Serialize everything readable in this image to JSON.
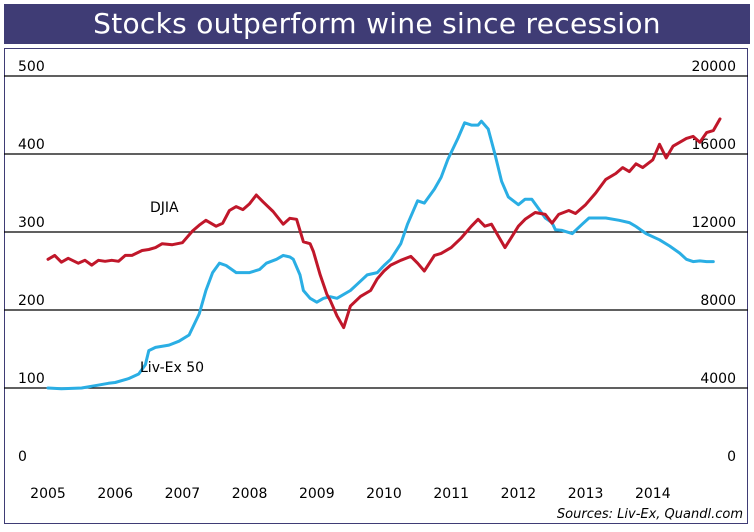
{
  "title": "Stocks outperform wine since recession",
  "source": "Sources: Liv-Ex, Quandl.com",
  "chart_data": {
    "type": "line",
    "title": "Stocks outperform wine since recession",
    "x_ticks": [
      "2005",
      "2006",
      "2007",
      "2008",
      "2009",
      "2010",
      "2011",
      "2012",
      "2013",
      "2014"
    ],
    "xlim": [
      2005,
      2015
    ],
    "left_axis": {
      "ticks": [
        "0",
        "100",
        "200",
        "300",
        "400",
        "500"
      ],
      "ylim": [
        0,
        500
      ]
    },
    "right_axis": {
      "ticks": [
        "0",
        "4000",
        "8000",
        "12000",
        "16000",
        "20000"
      ],
      "ylim": [
        0,
        20000
      ]
    },
    "grid": "horizontal",
    "series": [
      {
        "name": "Liv-Ex 50",
        "axis": "left",
        "color": "#2aaee4",
        "points": [
          [
            2005.0,
            100
          ],
          [
            2005.2,
            99
          ],
          [
            2005.5,
            100
          ],
          [
            2005.7,
            103
          ],
          [
            2005.9,
            106
          ],
          [
            2006.0,
            107
          ],
          [
            2006.2,
            112
          ],
          [
            2006.35,
            118
          ],
          [
            2006.45,
            130
          ],
          [
            2006.5,
            148
          ],
          [
            2006.6,
            152
          ],
          [
            2006.8,
            155
          ],
          [
            2006.95,
            160
          ],
          [
            2007.1,
            168
          ],
          [
            2007.25,
            195
          ],
          [
            2007.35,
            225
          ],
          [
            2007.45,
            248
          ],
          [
            2007.55,
            260
          ],
          [
            2007.65,
            257
          ],
          [
            2007.8,
            248
          ],
          [
            2008.0,
            248
          ],
          [
            2008.15,
            252
          ],
          [
            2008.25,
            260
          ],
          [
            2008.4,
            265
          ],
          [
            2008.5,
            270
          ],
          [
            2008.6,
            268
          ],
          [
            2008.65,
            265
          ],
          [
            2008.75,
            245
          ],
          [
            2008.8,
            225
          ],
          [
            2008.9,
            215
          ],
          [
            2009.0,
            210
          ],
          [
            2009.1,
            215
          ],
          [
            2009.2,
            217
          ],
          [
            2009.3,
            215
          ],
          [
            2009.5,
            225
          ],
          [
            2009.6,
            233
          ],
          [
            2009.75,
            245
          ],
          [
            2009.9,
            248
          ],
          [
            2010.0,
            257
          ],
          [
            2010.1,
            265
          ],
          [
            2010.25,
            285
          ],
          [
            2010.35,
            310
          ],
          [
            2010.5,
            340
          ],
          [
            2010.6,
            337
          ],
          [
            2010.75,
            355
          ],
          [
            2010.85,
            370
          ],
          [
            2010.95,
            393
          ],
          [
            2011.1,
            420
          ],
          [
            2011.2,
            440
          ],
          [
            2011.3,
            437
          ],
          [
            2011.4,
            437
          ],
          [
            2011.45,
            442
          ],
          [
            2011.55,
            432
          ],
          [
            2011.65,
            400
          ],
          [
            2011.75,
            365
          ],
          [
            2011.85,
            345
          ],
          [
            2012.0,
            335
          ],
          [
            2012.1,
            342
          ],
          [
            2012.2,
            342
          ],
          [
            2012.3,
            330
          ],
          [
            2012.4,
            318
          ],
          [
            2012.5,
            312
          ],
          [
            2012.55,
            303
          ],
          [
            2012.65,
            302
          ],
          [
            2012.8,
            298
          ],
          [
            2012.95,
            310
          ],
          [
            2013.05,
            318
          ],
          [
            2013.15,
            318
          ],
          [
            2013.3,
            318
          ],
          [
            2013.5,
            315
          ],
          [
            2013.65,
            312
          ],
          [
            2013.75,
            307
          ],
          [
            2013.9,
            298
          ],
          [
            2014.1,
            290
          ],
          [
            2014.25,
            282
          ],
          [
            2014.4,
            273
          ],
          [
            2014.5,
            265
          ],
          [
            2014.6,
            262
          ],
          [
            2014.7,
            263
          ],
          [
            2014.8,
            262
          ],
          [
            2014.9,
            262
          ]
        ]
      },
      {
        "name": "DJIA",
        "axis": "right",
        "color": "#c0172a",
        "points": [
          [
            2005.0,
            10600
          ],
          [
            2005.1,
            10800
          ],
          [
            2005.2,
            10450
          ],
          [
            2005.3,
            10650
          ],
          [
            2005.45,
            10400
          ],
          [
            2005.55,
            10550
          ],
          [
            2005.65,
            10300
          ],
          [
            2005.75,
            10550
          ],
          [
            2005.85,
            10500
          ],
          [
            2005.95,
            10550
          ],
          [
            2006.05,
            10500
          ],
          [
            2006.15,
            10800
          ],
          [
            2006.25,
            10800
          ],
          [
            2006.4,
            11050
          ],
          [
            2006.5,
            11100
          ],
          [
            2006.6,
            11200
          ],
          [
            2006.7,
            11400
          ],
          [
            2006.85,
            11350
          ],
          [
            2007.0,
            11450
          ],
          [
            2007.15,
            12050
          ],
          [
            2007.25,
            12350
          ],
          [
            2007.35,
            12600
          ],
          [
            2007.5,
            12300
          ],
          [
            2007.6,
            12450
          ],
          [
            2007.7,
            13100
          ],
          [
            2007.8,
            13300
          ],
          [
            2007.9,
            13150
          ],
          [
            2008.0,
            13450
          ],
          [
            2008.1,
            13900
          ],
          [
            2008.2,
            13550
          ],
          [
            2008.35,
            13050
          ],
          [
            2008.5,
            12400
          ],
          [
            2008.6,
            12700
          ],
          [
            2008.7,
            12650
          ],
          [
            2008.8,
            11500
          ],
          [
            2008.9,
            11400
          ],
          [
            2008.95,
            11000
          ],
          [
            2009.05,
            9800
          ],
          [
            2009.15,
            8800
          ],
          [
            2009.2,
            8500
          ],
          [
            2009.3,
            7700
          ],
          [
            2009.4,
            7100
          ],
          [
            2009.5,
            8200
          ],
          [
            2009.65,
            8700
          ],
          [
            2009.8,
            9000
          ],
          [
            2009.9,
            9600
          ],
          [
            2010.0,
            10000
          ],
          [
            2010.1,
            10300
          ],
          [
            2010.25,
            10550
          ],
          [
            2010.4,
            10750
          ],
          [
            2010.5,
            10400
          ],
          [
            2010.6,
            10000
          ],
          [
            2010.75,
            10800
          ],
          [
            2010.85,
            10900
          ],
          [
            2011.0,
            11200
          ],
          [
            2011.15,
            11700
          ],
          [
            2011.3,
            12300
          ],
          [
            2011.4,
            12650
          ],
          [
            2011.5,
            12300
          ],
          [
            2011.6,
            12400
          ],
          [
            2011.7,
            11800
          ],
          [
            2011.8,
            11200
          ],
          [
            2011.9,
            11750
          ],
          [
            2012.0,
            12300
          ],
          [
            2012.1,
            12650
          ],
          [
            2012.25,
            13000
          ],
          [
            2012.4,
            12900
          ],
          [
            2012.5,
            12450
          ],
          [
            2012.6,
            12900
          ],
          [
            2012.75,
            13100
          ],
          [
            2012.85,
            12950
          ],
          [
            2013.0,
            13400
          ],
          [
            2013.15,
            14000
          ],
          [
            2013.3,
            14700
          ],
          [
            2013.45,
            15000
          ],
          [
            2013.55,
            15300
          ],
          [
            2013.65,
            15100
          ],
          [
            2013.75,
            15500
          ],
          [
            2013.85,
            15300
          ],
          [
            2014.0,
            15700
          ],
          [
            2014.1,
            16500
          ],
          [
            2014.2,
            15800
          ],
          [
            2014.3,
            16400
          ],
          [
            2014.4,
            16600
          ],
          [
            2014.5,
            16800
          ],
          [
            2014.6,
            16900
          ],
          [
            2014.7,
            16600
          ],
          [
            2014.8,
            17100
          ],
          [
            2014.9,
            17200
          ],
          [
            2015.0,
            17800
          ]
        ]
      }
    ]
  }
}
